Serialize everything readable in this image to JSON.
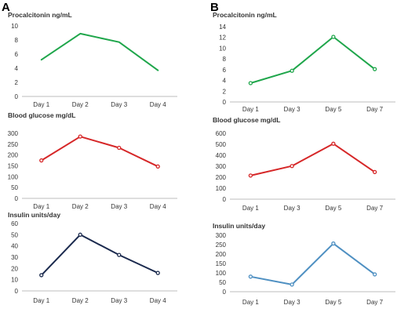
{
  "panels": [
    {
      "letter": "A"
    },
    {
      "letter": "B"
    }
  ],
  "chart_data": [
    {
      "panel": "A",
      "type": "line",
      "title": "Procalcitonin ng/mL",
      "categories": [
        "Day 1",
        "Day 2",
        "Day 3",
        "Day 4"
      ],
      "values": [
        5.2,
        8.9,
        7.7,
        3.7
      ],
      "ylim": [
        0,
        10
      ],
      "yticks": [
        0,
        2,
        4,
        6,
        8,
        10
      ],
      "color": "#1fa64b",
      "markers": false
    },
    {
      "panel": "A",
      "type": "line",
      "title": "Blood  glucose mg/dL",
      "categories": [
        "Day 1",
        "Day 2",
        "Day 3",
        "Day 4"
      ],
      "values": [
        175,
        285,
        233,
        147
      ],
      "ylim": [
        0,
        300
      ],
      "yticks": [
        0,
        50,
        100,
        150,
        200,
        250,
        300
      ],
      "color": "#d62728",
      "markers": true
    },
    {
      "panel": "A",
      "type": "line",
      "title": "Insulin units/day",
      "categories": [
        "Day 1",
        "Day 2",
        "Day 3",
        "Day 4"
      ],
      "values": [
        14,
        50,
        32,
        16
      ],
      "ylim": [
        0,
        60
      ],
      "yticks": [
        0,
        10,
        20,
        30,
        40,
        50,
        60
      ],
      "color": "#1b2a4e",
      "markers": true
    },
    {
      "panel": "B",
      "type": "line",
      "title": "Procalcitonin ng/mL",
      "categories": [
        "Day 1",
        "Day 3",
        "Day 5",
        "Day 7"
      ],
      "values": [
        3.5,
        5.8,
        12.1,
        6.1
      ],
      "ylim": [
        0,
        14
      ],
      "yticks": [
        0,
        2,
        4,
        6,
        8,
        10,
        12,
        14
      ],
      "color": "#1fa64b",
      "markers": true
    },
    {
      "panel": "B",
      "type": "line",
      "title": "Blood glucose mg/dL",
      "categories": [
        "Day 1",
        "Day 3",
        "Day 5",
        "Day 7"
      ],
      "values": [
        215,
        302,
        505,
        247
      ],
      "ylim": [
        0,
        600
      ],
      "yticks": [
        0,
        100,
        200,
        300,
        400,
        500,
        600
      ],
      "color": "#d62728",
      "markers": true
    },
    {
      "panel": "B",
      "type": "line",
      "title": "Insulin units/day",
      "categories": [
        "Day 1",
        "Day 3",
        "Day 5",
        "Day 7"
      ],
      "values": [
        80,
        38,
        256,
        92
      ],
      "ylim": [
        0,
        300
      ],
      "yticks": [
        0,
        50,
        100,
        150,
        200,
        250,
        300
      ],
      "color": "#4f90c2",
      "markers": true
    }
  ]
}
